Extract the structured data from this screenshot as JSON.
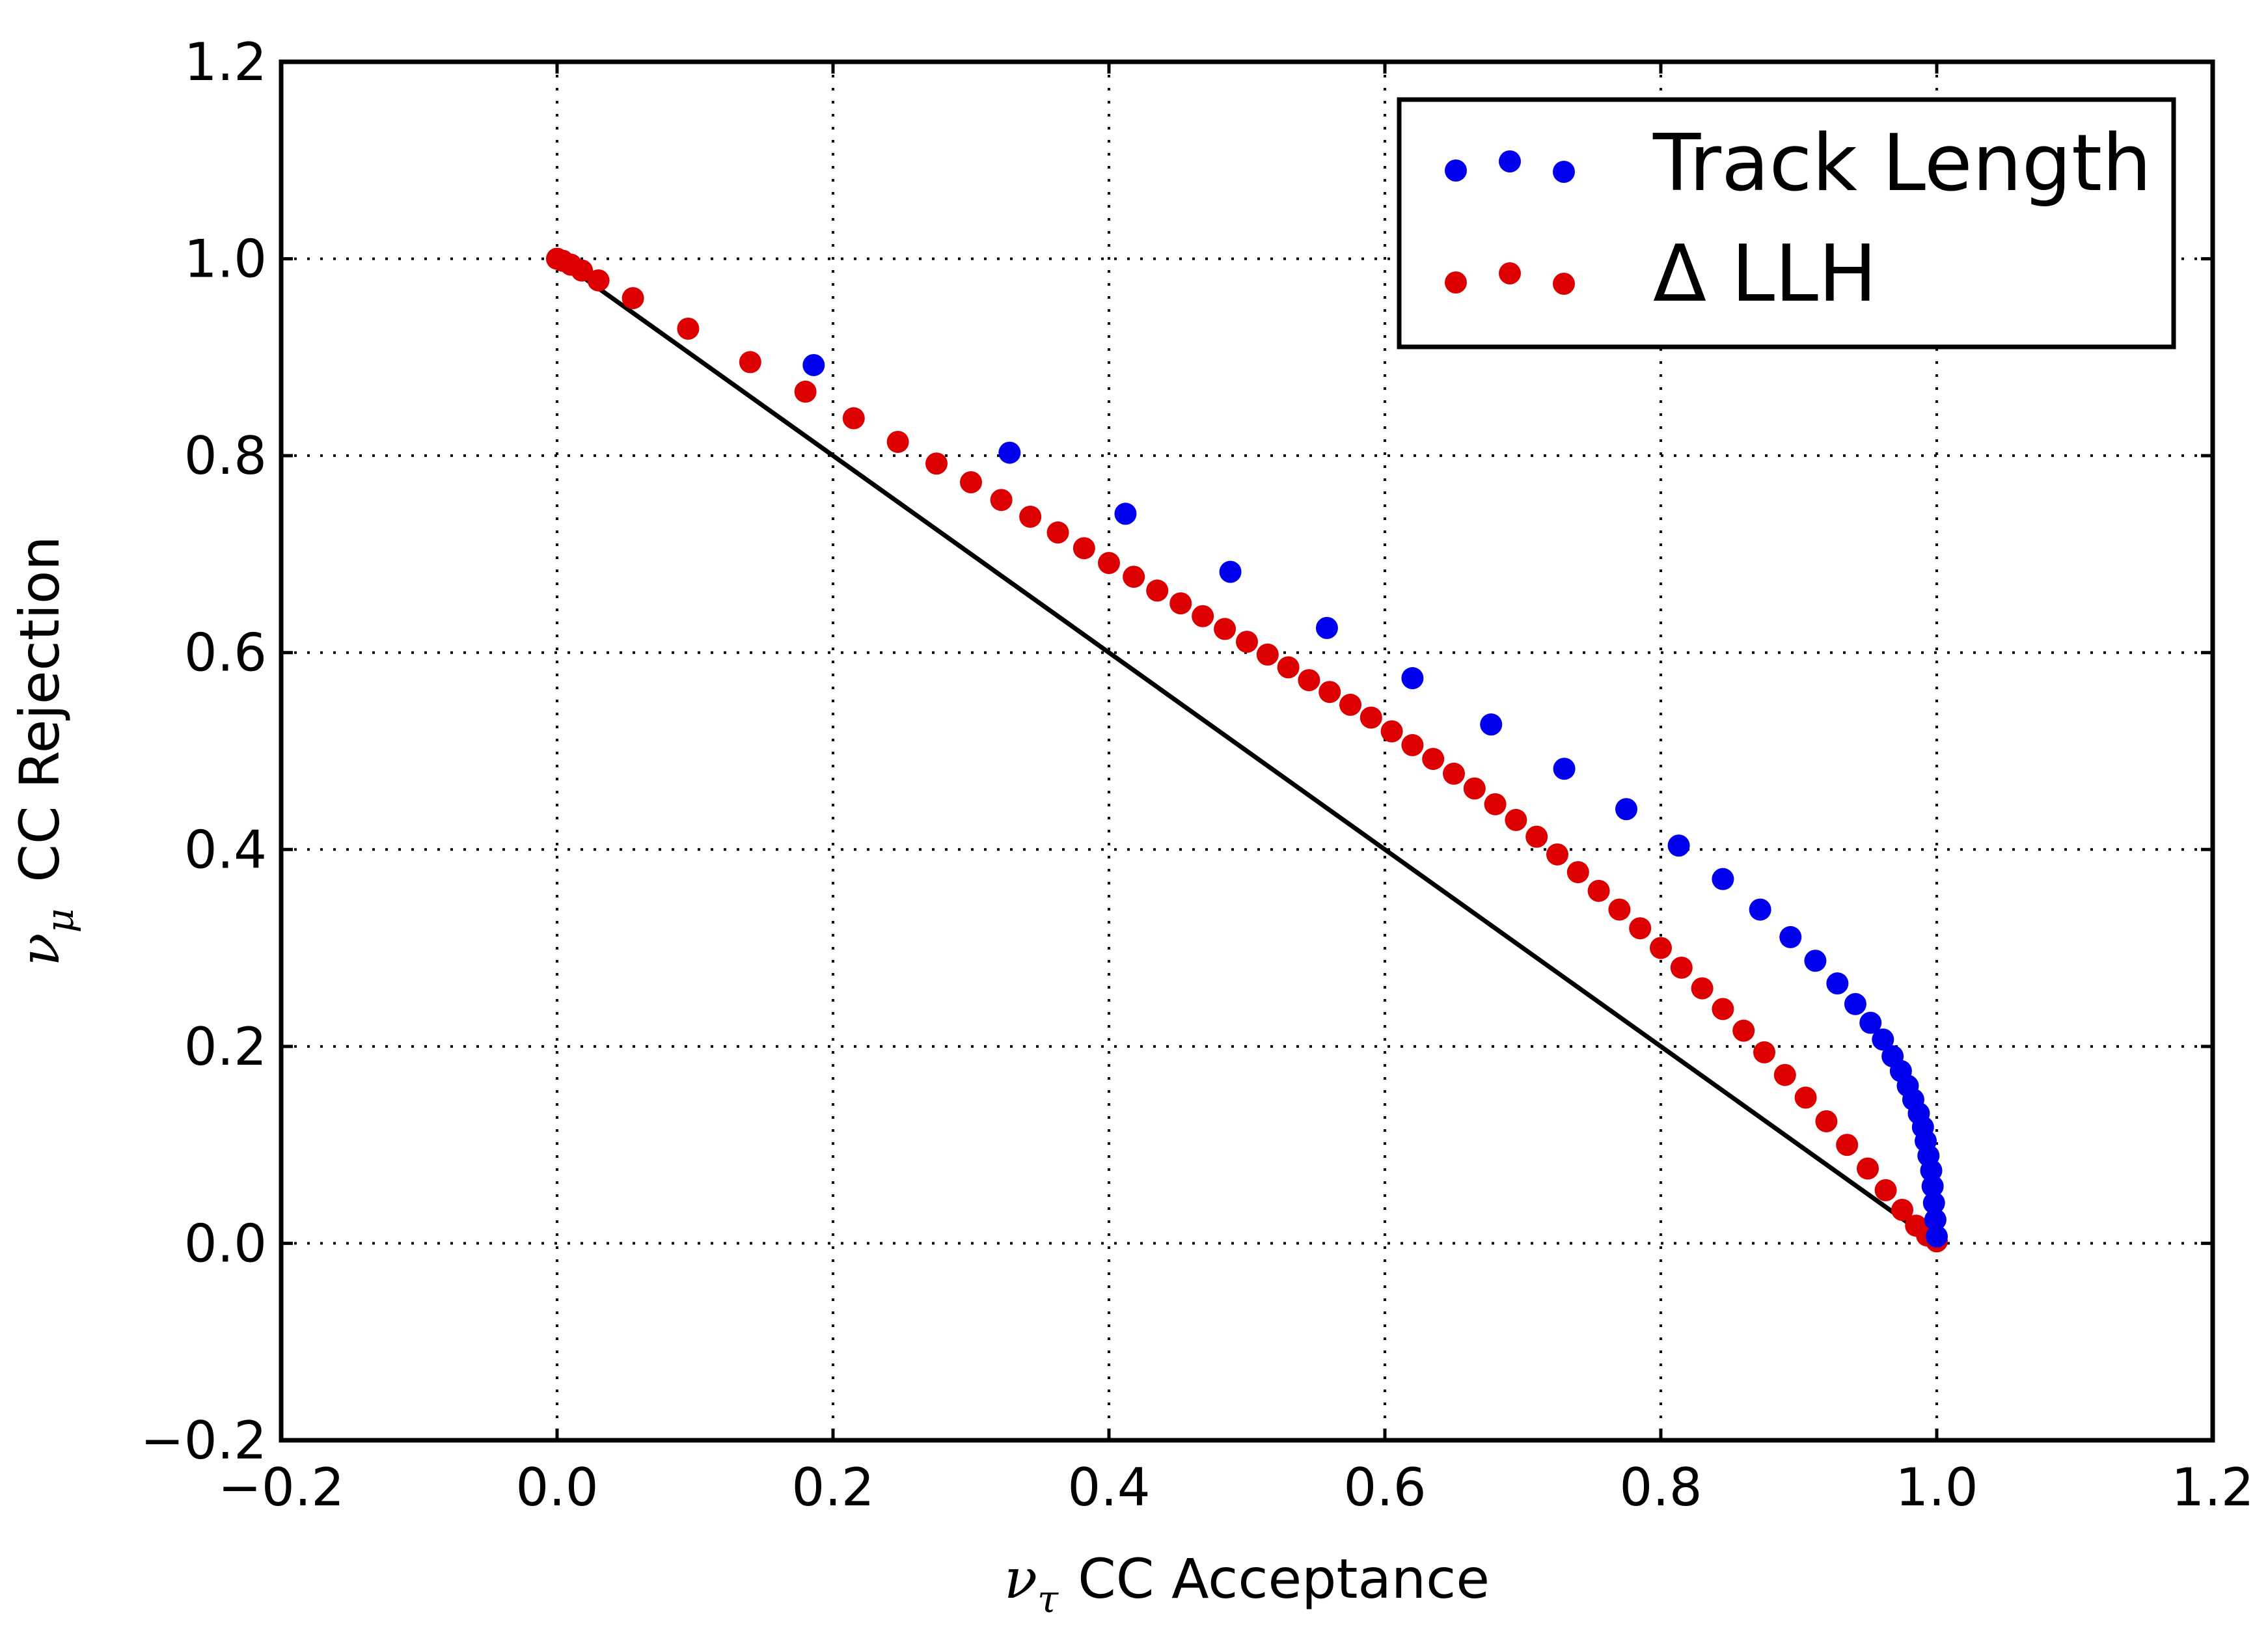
{
  "chart_data": {
    "type": "scatter",
    "xlabel": "ν_τ CC Acceptance",
    "xlabel_parts": {
      "symbol": "ν",
      "subscript": "τ",
      "text": "CC Acceptance"
    },
    "ylabel": "ν_μ CC Rejection",
    "ylabel_parts": {
      "symbol": "ν",
      "subscript": "μ",
      "text": "CC Rejection"
    },
    "xlim": [
      -0.2,
      1.2
    ],
    "ylim": [
      -0.2,
      1.2
    ],
    "xticks": [
      "−0.2",
      "0.0",
      "0.2",
      "0.4",
      "0.6",
      "0.8",
      "1.0",
      "1.2"
    ],
    "yticks": [
      "−0.2",
      "0.0",
      "0.2",
      "0.4",
      "0.6",
      "0.8",
      "1.0",
      "1.2"
    ],
    "grid": true,
    "legend_position": "top-right",
    "series": [
      {
        "name": "Track Length",
        "color": "#0000ee",
        "x": [
          0.186,
          0.328,
          0.412,
          0.488,
          0.558,
          0.62,
          0.677,
          0.73,
          0.775,
          0.813,
          0.845,
          0.872,
          0.894,
          0.912,
          0.928,
          0.941,
          0.952,
          0.961,
          0.968,
          0.974,
          0.979,
          0.983,
          0.987,
          0.99,
          0.992,
          0.994,
          0.996,
          0.997,
          0.998,
          0.999,
          1.0
        ],
        "y": [
          0.892,
          0.803,
          0.741,
          0.682,
          0.625,
          0.574,
          0.527,
          0.482,
          0.441,
          0.404,
          0.37,
          0.339,
          0.311,
          0.287,
          0.264,
          0.243,
          0.224,
          0.207,
          0.19,
          0.175,
          0.16,
          0.146,
          0.132,
          0.118,
          0.104,
          0.089,
          0.074,
          0.058,
          0.041,
          0.024,
          0.007
        ]
      },
      {
        "name": "Δ LLH",
        "color": "#dd0000",
        "x": [
          0.0,
          0.004,
          0.01,
          0.018,
          0.03,
          0.055,
          0.095,
          0.14,
          0.18,
          0.215,
          0.247,
          0.275,
          0.3,
          0.322,
          0.343,
          0.363,
          0.382,
          0.4,
          0.418,
          0.435,
          0.452,
          0.468,
          0.484,
          0.5,
          0.515,
          0.53,
          0.545,
          0.56,
          0.575,
          0.59,
          0.605,
          0.62,
          0.635,
          0.65,
          0.665,
          0.68,
          0.695,
          0.71,
          0.725,
          0.74,
          0.755,
          0.77,
          0.785,
          0.8,
          0.815,
          0.83,
          0.845,
          0.86,
          0.875,
          0.89,
          0.905,
          0.92,
          0.935,
          0.95,
          0.963,
          0.975,
          0.985,
          0.993,
          1.0
        ],
        "y": [
          1.0,
          0.998,
          0.994,
          0.988,
          0.978,
          0.96,
          0.929,
          0.895,
          0.865,
          0.838,
          0.814,
          0.792,
          0.773,
          0.755,
          0.738,
          0.722,
          0.706,
          0.691,
          0.677,
          0.663,
          0.65,
          0.637,
          0.624,
          0.611,
          0.598,
          0.585,
          0.572,
          0.56,
          0.547,
          0.534,
          0.52,
          0.506,
          0.492,
          0.477,
          0.462,
          0.446,
          0.43,
          0.413,
          0.395,
          0.377,
          0.358,
          0.339,
          0.32,
          0.3,
          0.28,
          0.259,
          0.238,
          0.216,
          0.194,
          0.171,
          0.148,
          0.124,
          0.1,
          0.076,
          0.054,
          0.034,
          0.018,
          0.008,
          0.002
        ]
      }
    ],
    "reference_line": {
      "x": [
        0.0,
        1.0
      ],
      "y": [
        1.0,
        0.0
      ],
      "color": "#000000"
    }
  }
}
